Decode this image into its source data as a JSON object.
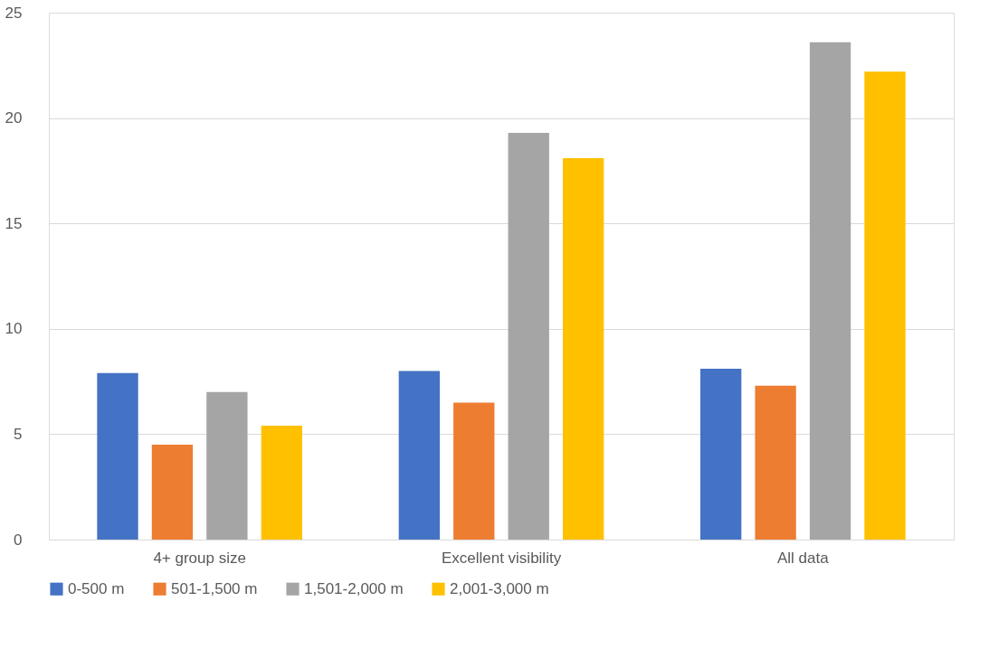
{
  "chart_data": {
    "type": "bar",
    "categories": [
      "4+ group size",
      "Excellent visibility",
      "All data"
    ],
    "series": [
      {
        "name": "0-500 m",
        "color": "#4472c4",
        "values": [
          7.9,
          8.0,
          8.1
        ]
      },
      {
        "name": "501-1,500 m",
        "color": "#ed7d31",
        "values": [
          4.5,
          6.5,
          7.3
        ]
      },
      {
        "name": "1,501-2,000 m",
        "color": "#a5a5a5",
        "values": [
          7.0,
          19.3,
          23.6
        ]
      },
      {
        "name": "2,001-3,000 m",
        "color": "#ffc000",
        "values": [
          5.4,
          18.1,
          22.2
        ]
      }
    ],
    "ylim": [
      0,
      25
    ],
    "yticks": [
      0,
      5,
      10,
      15,
      20,
      25
    ],
    "grid": "y",
    "legend": "bottom"
  }
}
